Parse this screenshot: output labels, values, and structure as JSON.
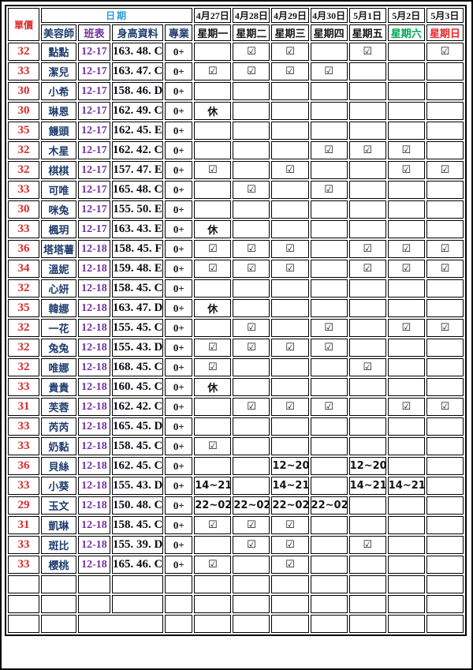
{
  "table": {
    "header": {
      "unit_price": "單價",
      "date_group": "日期",
      "beautician": "美容師",
      "shift": "班表",
      "profile": "身高資料",
      "specialty": "專業",
      "days": [
        {
          "date": "4月27日",
          "weekday": "星期一",
          "weekday_color": "#161616"
        },
        {
          "date": "4月28日",
          "weekday": "星期二",
          "weekday_color": "#161616"
        },
        {
          "date": "4月29日",
          "weekday": "星期三",
          "weekday_color": "#161616"
        },
        {
          "date": "4月30日",
          "weekday": "星期四",
          "weekday_color": "#161616"
        },
        {
          "date": "5月1日",
          "weekday": "星期五",
          "weekday_color": "#161616"
        },
        {
          "date": "5月2日",
          "weekday": "星期六",
          "weekday_color": "#00a651"
        },
        {
          "date": "5月3日",
          "weekday": "星期日",
          "weekday_color": "#e8252a"
        }
      ]
    },
    "colors": {
      "price": "#d92b2b",
      "date_group": "#2f9bdb",
      "name": "#1f3d6e",
      "shift": "#7030a0",
      "weekday_saturday": "#00a651",
      "weekday_sunday": "#e8252a",
      "grid": "#000000"
    },
    "symbols": {
      "checked": "☑",
      "rest": "休"
    },
    "rows": [
      {
        "price": "32",
        "name": "點點",
        "shift": "12-17",
        "profile": "163. 48. C",
        "spec": "0+",
        "days": [
          "",
          "☑",
          "☑",
          "",
          "☑",
          "",
          "☑"
        ]
      },
      {
        "price": "33",
        "name": "潔兒",
        "shift": "12-17",
        "profile": "163. 47. C",
        "spec": "0+",
        "days": [
          "☑",
          "☑",
          "☑",
          "☑",
          "",
          "",
          ""
        ]
      },
      {
        "price": "30",
        "name": "小希",
        "shift": "12-17",
        "profile": "158. 46. D",
        "spec": "0+",
        "days": [
          "",
          "",
          "",
          "",
          "",
          "",
          ""
        ]
      },
      {
        "price": "30",
        "name": "琳恩",
        "shift": "12-17",
        "profile": "162. 49. C",
        "spec": "0+",
        "days": [
          "休",
          "",
          "",
          "",
          "",
          "",
          ""
        ]
      },
      {
        "price": "35",
        "name": "饅頭",
        "shift": "12-17",
        "profile": "162. 45. E",
        "spec": "0+",
        "days": [
          "",
          "",
          "",
          "",
          "",
          "",
          ""
        ]
      },
      {
        "price": "32",
        "name": "木星",
        "shift": "12-17",
        "profile": "162. 42. C",
        "spec": "0+",
        "days": [
          "",
          "",
          "",
          "☑",
          "☑",
          "☑",
          ""
        ]
      },
      {
        "price": "32",
        "name": "棋棋",
        "shift": "12-17",
        "profile": "157. 47. E",
        "spec": "0+",
        "days": [
          "☑",
          "",
          "☑",
          "",
          "",
          "☑",
          "☑"
        ]
      },
      {
        "price": "33",
        "name": "可唯",
        "shift": "12-17",
        "profile": "165. 48. C",
        "spec": "0+",
        "days": [
          "",
          "☑",
          "",
          "☑",
          "",
          "",
          ""
        ]
      },
      {
        "price": "30",
        "name": "咪兔",
        "shift": "12-17",
        "profile": "155. 50. E",
        "spec": "0+",
        "days": [
          "",
          "",
          "",
          "",
          "",
          "",
          ""
        ]
      },
      {
        "price": "33",
        "name": "楓玥",
        "shift": "12-17",
        "profile": "163. 43. E",
        "spec": "0+",
        "days": [
          "休",
          "",
          "",
          "",
          "",
          "",
          ""
        ]
      },
      {
        "price": "36",
        "name": "塔塔薯",
        "shift": "12-18",
        "profile": "158. 45. F",
        "spec": "0+",
        "days": [
          "☑",
          "☑",
          "☑",
          "",
          "☑",
          "☑",
          "☑"
        ]
      },
      {
        "price": "34",
        "name": "溫妮",
        "shift": "12-18",
        "profile": "159. 48. E",
        "spec": "0+",
        "days": [
          "☑",
          "☑",
          "☑",
          "",
          "☑",
          "☑",
          "☑"
        ]
      },
      {
        "price": "32",
        "name": "心妍",
        "shift": "12-18",
        "profile": "158. 45. C",
        "spec": "0+",
        "days": [
          "",
          "",
          "",
          "",
          "",
          "",
          ""
        ]
      },
      {
        "price": "35",
        "name": "韓娜",
        "shift": "12-18",
        "profile": "163. 47. D",
        "spec": "0+",
        "days": [
          "休",
          "",
          "",
          "",
          "",
          "",
          ""
        ]
      },
      {
        "price": "32",
        "name": "一花",
        "shift": "12-18",
        "profile": "155. 45. C",
        "spec": "0+",
        "days": [
          "",
          "☑",
          "",
          "☑",
          "",
          "☑",
          "☑"
        ]
      },
      {
        "price": "32",
        "name": "兔兔",
        "shift": "12-18",
        "profile": "155. 43. D",
        "spec": "0+",
        "days": [
          "☑",
          "☑",
          "☑",
          "☑",
          "",
          "",
          ""
        ]
      },
      {
        "price": "32",
        "name": "唯娜",
        "shift": "12-18",
        "profile": "168. 45. C",
        "spec": "0+",
        "days": [
          "☑",
          "",
          "",
          "",
          "☑",
          "",
          ""
        ]
      },
      {
        "price": "33",
        "name": "貴貴",
        "shift": "12-18",
        "profile": "160. 45. C",
        "spec": "0+",
        "days": [
          "休",
          "",
          "",
          "",
          "",
          "",
          ""
        ]
      },
      {
        "price": "31",
        "name": "芙蓉",
        "shift": "12-18",
        "profile": "162. 42. C",
        "spec": "0+",
        "days": [
          "",
          "☑",
          "☑",
          "☑",
          "",
          "☑",
          "☑"
        ]
      },
      {
        "price": "33",
        "name": "芮芮",
        "shift": "12-18",
        "profile": "165. 45. D",
        "spec": "0+",
        "days": [
          "",
          "",
          "",
          "",
          "",
          "",
          ""
        ]
      },
      {
        "price": "33",
        "name": "奶黏",
        "shift": "12-18",
        "profile": "158. 45. C",
        "spec": "0+",
        "days": [
          "☑",
          "",
          "",
          "",
          "",
          "",
          ""
        ]
      },
      {
        "price": "36",
        "name": "貝絲",
        "shift": "12-18",
        "profile": "162. 45. C",
        "spec": "0+",
        "days": [
          "",
          "",
          "12~20",
          "",
          "12~20",
          "",
          ""
        ]
      },
      {
        "price": "33",
        "name": "小葵",
        "shift": "12-18",
        "profile": "155. 43. D",
        "spec": "0+",
        "days": [
          "14~21",
          "",
          "14~21",
          "",
          "14~21",
          "14~21",
          ""
        ]
      },
      {
        "price": "29",
        "name": "玉文",
        "shift": "12-18",
        "profile": "150. 48. C",
        "spec": "0+",
        "days": [
          "22~02",
          "22~02",
          "22~02",
          "22~02",
          "",
          "",
          ""
        ]
      },
      {
        "price": "31",
        "name": "凱琳",
        "shift": "12-18",
        "profile": "158. 45. C",
        "spec": "0+",
        "days": [
          "☑",
          "☑",
          "☑",
          "",
          "",
          "",
          ""
        ]
      },
      {
        "price": "33",
        "name": "斑比",
        "shift": "12-18",
        "profile": "155. 39. D",
        "spec": "0+",
        "days": [
          "",
          "☑",
          "☑",
          "",
          "☑",
          "",
          ""
        ]
      },
      {
        "price": "33",
        "name": "櫻桃",
        "shift": "12-18",
        "profile": "165. 46. C",
        "spec": "0+",
        "days": [
          "☑",
          "",
          "☑",
          "",
          "",
          "",
          ""
        ]
      }
    ],
    "empty_row_count": 3
  }
}
